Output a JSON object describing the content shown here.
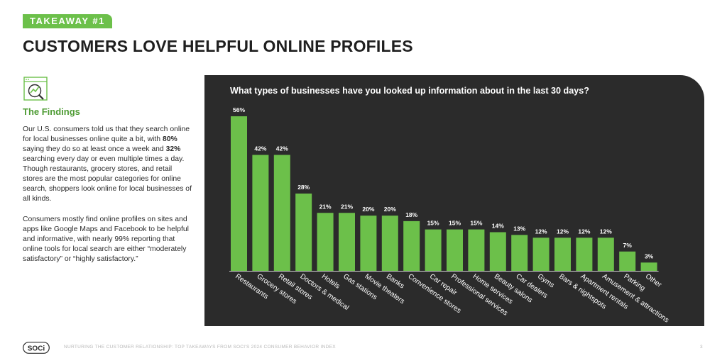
{
  "header": {
    "badge": "TAKEAWAY #1",
    "title": "CUSTOMERS LOVE HELPFUL ONLINE PROFILES"
  },
  "findings": {
    "icon": "trend-chart-icon",
    "heading": "The Findings",
    "para1": [
      {
        "t": "Our U.S. consumers told us that they search online for local businesses online quite a bit, with "
      },
      {
        "t": "80%",
        "b": true
      },
      {
        "t": " saying they do so at least once a week and "
      },
      {
        "t": "32%",
        "b": true
      },
      {
        "t": " searching every day or even multiple times a day. Though restaurants, grocery stores, and retail stores are the most popular categories for online search, shoppers look online for local businesses of all kinds."
      }
    ],
    "para2": "Consumers mostly find online profiles on sites and apps like Google Maps and Facebook to be helpful and informative, with nearly 99% reporting that online tools for local search are either “moderately satisfactory” or “highly satisfactory.”"
  },
  "colors": {
    "accent": "#6cc04a",
    "panel": "#2b2b2b",
    "bar": "#6cc04a"
  },
  "chart_data": {
    "type": "bar",
    "title": "What types of businesses have you looked up information about in the last 30 days?",
    "categories": [
      "Restaurants",
      "Grocery stores",
      "Retail stores",
      "Doctors & medical",
      "Hotels",
      "Gas stations",
      "Movie theaters",
      "Banks",
      "Convenience stores",
      "Car repair",
      "Professional services",
      "Home services",
      "Beauty salons",
      "Car dealers",
      "Gyms",
      "Bars & nightspots",
      "Apartment rentals",
      "Amusement & attractions",
      "Parking",
      "Other"
    ],
    "values": [
      56,
      42,
      42,
      28,
      21,
      21,
      20,
      20,
      18,
      15,
      15,
      15,
      14,
      13,
      12,
      12,
      12,
      12,
      7,
      3
    ],
    "value_suffix": "%",
    "ylim": [
      0,
      56
    ],
    "grid": false,
    "legend": "none"
  },
  "footer": {
    "logo": "SOCi",
    "text": "NURTURING THE CUSTOMER RELATIONSHIP: TOP TAKEAWAYS FROM SOCI'S 2024 CONSUMER BEHAVIOR INDEX",
    "page": "3"
  }
}
